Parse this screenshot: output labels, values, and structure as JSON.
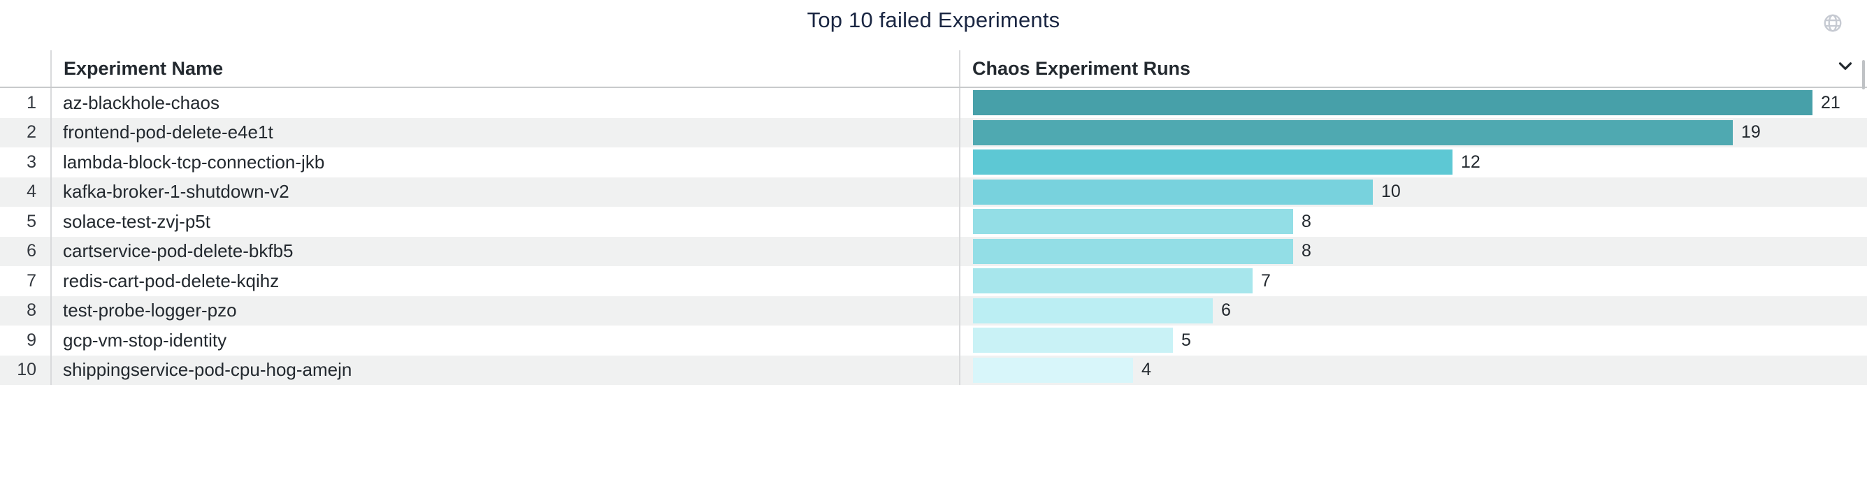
{
  "panel": {
    "title": "Top 10 failed Experiments",
    "icons": {
      "globe": "globe-icon",
      "sort_chevron": "chevron-down-icon"
    },
    "colors": {
      "title_text": "#1a2642",
      "header_text": "#23292f",
      "row_stripe": "#f0f1f1",
      "divider": "#d9dadc",
      "globe_icon": "#c6cad2"
    }
  },
  "table": {
    "columns": [
      {
        "label": "Experiment Name"
      },
      {
        "label": "Chaos Experiment Runs"
      }
    ],
    "rows": [
      {
        "rank": "1",
        "name": "az-blackhole-chaos",
        "value": 21,
        "color": "#47a0a9"
      },
      {
        "rank": "2",
        "name": "frontend-pod-delete-e4e1t",
        "value": 19,
        "color": "#4fa9b1"
      },
      {
        "rank": "3",
        "name": "lambda-block-tcp-connection-jkb",
        "value": 12,
        "color": "#5dc8d4"
      },
      {
        "rank": "4",
        "name": "kafka-broker-1-shutdown-v2",
        "value": 10,
        "color": "#78d2dd"
      },
      {
        "rank": "5",
        "name": "solace-test-zvj-p5t",
        "value": 8,
        "color": "#93dee6"
      },
      {
        "rank": "6",
        "name": "cartservice-pod-delete-bkfb5",
        "value": 8,
        "color": "#93dee6"
      },
      {
        "rank": "7",
        "name": "redis-cart-pod-delete-kqihz",
        "value": 7,
        "color": "#a7e6ec"
      },
      {
        "rank": "8",
        "name": "test-probe-logger-pzo",
        "value": 6,
        "color": "#bbeef3"
      },
      {
        "rank": "9",
        "name": "gcp-vm-stop-identity",
        "value": 5,
        "color": "#c9f2f6"
      },
      {
        "rank": "10",
        "name": "shippingservice-pod-cpu-hog-amejn",
        "value": 4,
        "color": "#d8f6fa"
      }
    ]
  },
  "chart_data": {
    "type": "bar",
    "orientation": "horizontal",
    "title": "Top 10 failed Experiments",
    "categories": [
      "az-blackhole-chaos",
      "frontend-pod-delete-e4e1t",
      "lambda-block-tcp-connection-jkb",
      "kafka-broker-1-shutdown-v2",
      "solace-test-zvj-p5t",
      "cartservice-pod-delete-bkfb5",
      "redis-cart-pod-delete-kqihz",
      "test-probe-logger-pzo",
      "gcp-vm-stop-identity",
      "shippingservice-pod-cpu-hog-amejn"
    ],
    "values": [
      21,
      19,
      12,
      10,
      8,
      8,
      7,
      6,
      5,
      4
    ],
    "xlabel": "Chaos Experiment Runs",
    "ylabel": "Experiment Name",
    "xlim": [
      0,
      21
    ],
    "grid": false,
    "legend": false,
    "data_labels": true,
    "bar_colors": [
      "#47a0a9",
      "#4fa9b1",
      "#5dc8d4",
      "#78d2dd",
      "#93dee6",
      "#93dee6",
      "#a7e6ec",
      "#bbeef3",
      "#c9f2f6",
      "#d8f6fa"
    ]
  }
}
